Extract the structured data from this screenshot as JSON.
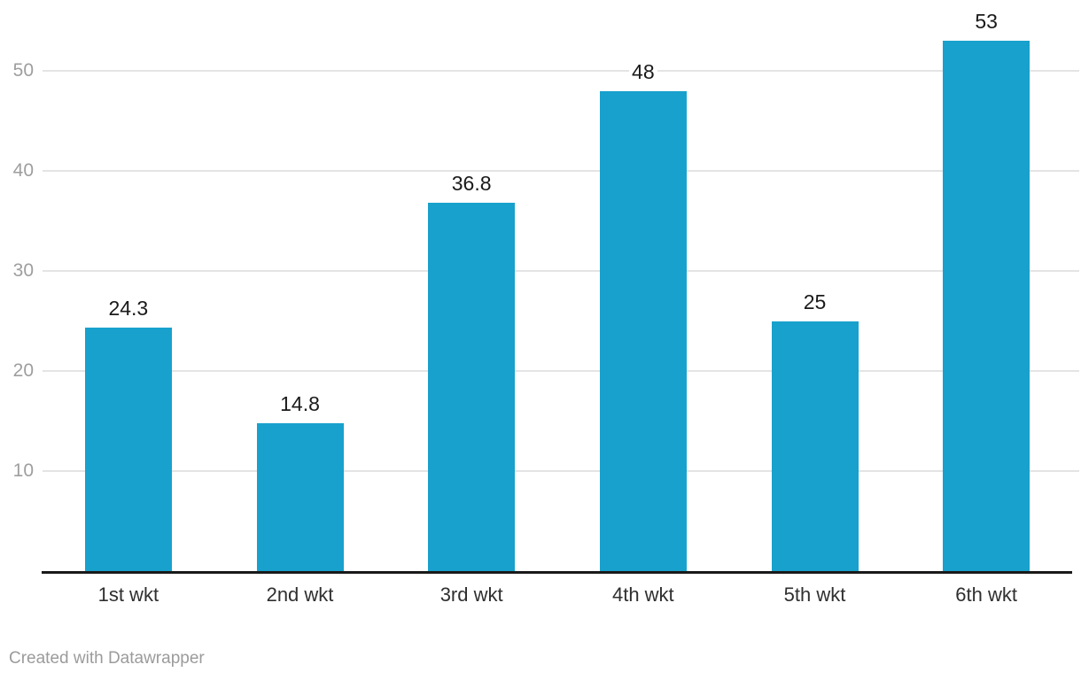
{
  "footer": {
    "credit": "Created with Datawrapper"
  },
  "chart_data": {
    "type": "bar",
    "title": "",
    "xlabel": "",
    "ylabel": "",
    "categories": [
      "1st wkt",
      "2nd wkt",
      "3rd wkt",
      "4th wkt",
      "5th wkt",
      "6th wkt"
    ],
    "values": [
      24.3,
      14.8,
      36.8,
      48,
      25,
      53
    ],
    "value_labels": [
      "24.3",
      "14.8",
      "36.8",
      "48",
      "25",
      "53"
    ],
    "yticks": [
      10,
      20,
      30,
      40,
      50
    ],
    "ylim": [
      0,
      55
    ],
    "grid": true,
    "legend": false,
    "bar_color": "#18a1cc",
    "gridline_color": "#e4e4e4",
    "axis_line_color": "#1a1a1a",
    "ytick_color": "#9e9e9e",
    "xtick_color": "#2f2f2f",
    "value_label_color": "#1a1a1a",
    "credit_color": "#9b9b9b"
  }
}
